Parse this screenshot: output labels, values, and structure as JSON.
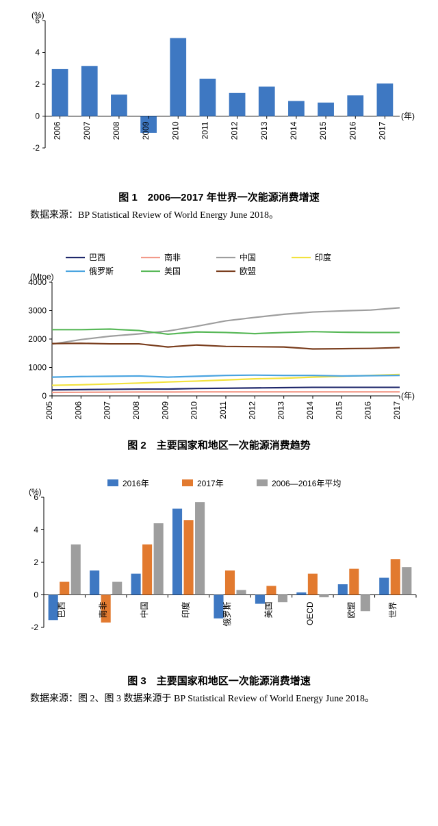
{
  "fig1": {
    "type": "bar",
    "y_unit": "(%)",
    "x_unit": "(年)",
    "categories": [
      "2006",
      "2007",
      "2008",
      "2009",
      "2010",
      "2011",
      "2012",
      "2013",
      "2014",
      "2015",
      "2016",
      "2017"
    ],
    "values": [
      2.95,
      3.15,
      1.35,
      -1.05,
      4.9,
      2.35,
      1.45,
      1.85,
      0.95,
      0.85,
      1.3,
      2.05
    ],
    "bar_color": "#3e78c2",
    "ylim": [
      -2,
      6
    ],
    "ytick_step": 2,
    "bar_width": 0.55,
    "background_color": "#ffffff",
    "axis_color": "#000000",
    "label_fontsize": 12,
    "caption": "图 1　2006—2017 年世界一次能源消费增速",
    "caption_fontsize": 15,
    "source": "数据来源：BP Statistical Review of World Energy June 2018。",
    "source_fontsize": 14
  },
  "fig2": {
    "type": "line",
    "y_unit": "(Mtoe)",
    "x_unit": "(年)",
    "categories": [
      "2005",
      "2006",
      "2007",
      "2008",
      "2009",
      "2010",
      "2011",
      "2012",
      "2013",
      "2014",
      "2015",
      "2016",
      "2017"
    ],
    "ylim": [
      0,
      4000
    ],
    "ytick_step": 1000,
    "legend_pos": "top-inside",
    "line_width": 2.2,
    "background_color": "#ffffff",
    "label_fontsize": 12,
    "series": [
      {
        "name": "巴西",
        "color": "#1f286b",
        "values": [
          210,
          220,
          230,
          240,
          240,
          260,
          270,
          280,
          290,
          300,
          300,
          300,
          300
        ]
      },
      {
        "name": "南非",
        "color": "#f29a8a",
        "values": [
          120,
          125,
          130,
          135,
          135,
          140,
          140,
          140,
          140,
          140,
          140,
          140,
          140
        ]
      },
      {
        "name": "中国",
        "color": "#9e9e9e",
        "values": [
          1820,
          1980,
          2100,
          2180,
          2280,
          2450,
          2640,
          2760,
          2870,
          2950,
          2990,
          3020,
          3100
        ]
      },
      {
        "name": "印度",
        "color": "#f2e23f",
        "values": [
          370,
          390,
          420,
          450,
          490,
          520,
          560,
          600,
          620,
          660,
          690,
          720,
          750
        ]
      },
      {
        "name": "俄罗斯",
        "color": "#4aa4e0",
        "values": [
          660,
          680,
          690,
          700,
          660,
          690,
          720,
          730,
          720,
          720,
          700,
          710,
          720
        ]
      },
      {
        "name": "美国",
        "color": "#58b858",
        "values": [
          2330,
          2330,
          2350,
          2300,
          2170,
          2250,
          2230,
          2190,
          2230,
          2260,
          2240,
          2230,
          2230
        ]
      },
      {
        "name": "欧盟",
        "color": "#7a3e1e",
        "values": [
          1840,
          1850,
          1830,
          1830,
          1720,
          1790,
          1740,
          1730,
          1720,
          1650,
          1660,
          1670,
          1700
        ]
      }
    ],
    "caption": "图 2　主要国家和地区一次能源消费趋势",
    "caption_fontsize": 15
  },
  "fig3": {
    "type": "grouped-bar",
    "y_unit": "(%)",
    "categories": [
      "巴西",
      "南非",
      "中国",
      "印度",
      "俄罗斯",
      "美国",
      "OECD",
      "欧盟",
      "世界"
    ],
    "ylim": [
      -2,
      6
    ],
    "ytick_step": 2,
    "bar_group_width": 0.78,
    "bar_gap": 0.04,
    "background_color": "#ffffff",
    "label_fontsize": 12,
    "legend_pos": "top-center",
    "series": [
      {
        "name": "2016年",
        "color": "#3e78c2",
        "values": [
          -1.55,
          1.5,
          1.3,
          5.3,
          -1.45,
          -0.55,
          0.15,
          0.65,
          1.05
        ]
      },
      {
        "name": "2017年",
        "color": "#e27a2f",
        "values": [
          0.8,
          -1.7,
          3.1,
          4.6,
          1.5,
          0.55,
          1.3,
          1.6,
          2.2
        ]
      },
      {
        "name": "2006—2016年平均",
        "color": "#9e9e9e",
        "values": [
          3.1,
          0.8,
          4.4,
          5.7,
          0.3,
          -0.45,
          -0.15,
          -1.0,
          1.7
        ]
      }
    ],
    "caption": "图 3　主要国家和地区一次能源消费增速",
    "caption_fontsize": 15,
    "source": "数据来源：图 2、图 3 数据来源于 BP Statistical Review of World Energy June 2018。",
    "source_fontsize": 14
  }
}
